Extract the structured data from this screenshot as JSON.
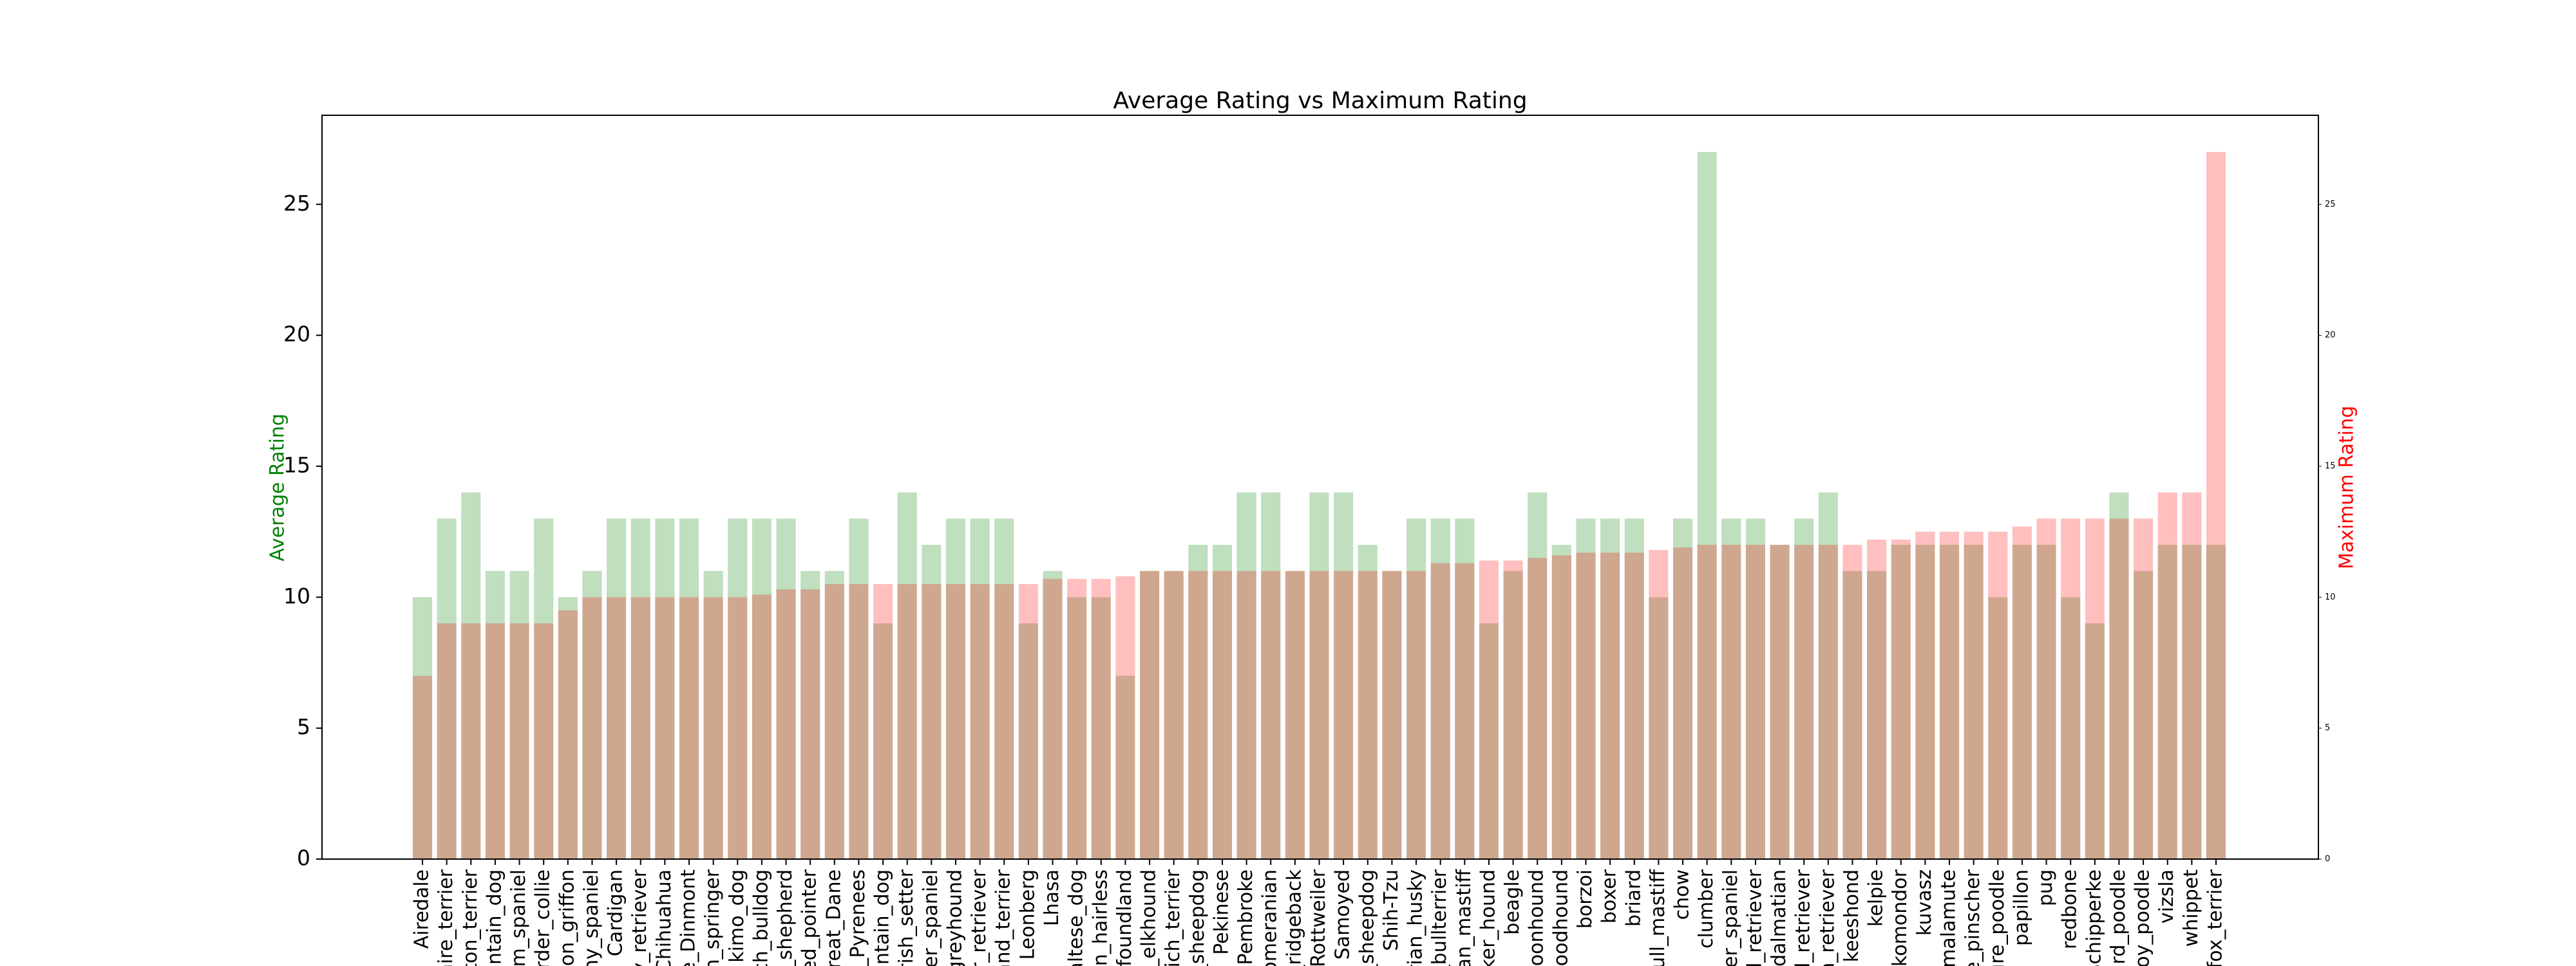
{
  "chart_data": {
    "type": "bar",
    "title": "Average Rating vs Maximum Rating",
    "ylabel": "Average Rating",
    "y2label": "Maximum Rating",
    "categories": [
      "Airedale",
      "hire_terrier",
      "ton_terrier",
      "untain_dog",
      "im_spaniel",
      "order_collie",
      "con_griffon",
      "ny_spaniel",
      "Cardigan",
      "y_retriever",
      "Chihuahua",
      "e_Dinmont",
      "h_springer",
      "kimo_dog",
      "ch_bulldog",
      "_shepherd",
      "ed_pointer",
      "reat_Dane",
      "t_Pyrenees",
      "untain_dog",
      "rish_setter",
      "ter_spaniel",
      "greyhound",
      "r_retriever",
      "and_terrier",
      "Leonberg",
      "Lhasa",
      "altese_dog",
      "an_hairless",
      "vfoundland",
      "_elkhound",
      "vich_terrier",
      "_sheepdog",
      "Pekinese",
      "Pembroke",
      "omeranian",
      "_ridgeback",
      "Rottweiler",
      "Samoyed",
      "_sheepdog",
      "Shih-Tzu",
      "rian_husky",
      "_bullterrier",
      "tan_mastiff",
      "ker_hound",
      "beagle",
      "coonhound",
      "loodhound",
      "borzoi",
      "boxer",
      "briard",
      "bull_mastiff",
      "chow",
      "clumber",
      "ker_spaniel",
      "d_retriever",
      "dalmatian",
      "d_retriever",
      "n_retriever",
      "keeshond",
      "kelpie",
      "komondor",
      "kuvasz",
      "malamute",
      "e_pinscher",
      "ure_poodle",
      "papillon",
      "pug",
      "redbone",
      "schipperke",
      "ard_poodle",
      "toy_poodle",
      "vizsla",
      "whippet",
      "_fox_terrier"
    ],
    "series": [
      {
        "name": "Average Rating",
        "color": "green",
        "opacity": 0.25,
        "values": [
          10,
          13,
          14,
          11,
          11,
          13,
          10,
          11,
          13,
          13,
          13,
          13,
          11,
          13,
          13,
          13,
          11,
          11,
          13,
          9,
          14,
          12,
          13,
          13,
          13,
          9,
          11,
          10,
          10,
          7,
          11,
          11,
          12,
          12,
          14,
          14,
          11,
          14,
          14,
          12,
          11,
          13,
          13,
          13,
          9,
          11,
          14,
          12,
          13,
          13,
          13,
          10,
          13,
          27,
          13,
          13,
          12,
          13,
          14,
          11,
          11,
          12,
          12,
          12,
          12,
          10,
          12,
          12,
          10,
          9,
          14,
          11,
          12,
          12,
          12
        ]
      },
      {
        "name": "Maximum Rating",
        "color": "red",
        "opacity": 0.25,
        "axis": "y2",
        "values": [
          7,
          9,
          9,
          9,
          9,
          9,
          9.5,
          10,
          10,
          10,
          10,
          10,
          10,
          10,
          10.1,
          10.3,
          10.3,
          10.5,
          10.5,
          10.5,
          10.5,
          10.5,
          10.5,
          10.5,
          10.5,
          10.5,
          10.7,
          10.7,
          10.7,
          10.8,
          11,
          11,
          11,
          11,
          11,
          11,
          11,
          11,
          11,
          11,
          11,
          11,
          11.3,
          11.3,
          11.4,
          11.4,
          11.5,
          11.6,
          11.7,
          11.7,
          11.7,
          11.8,
          11.9,
          12,
          12,
          12,
          12,
          12,
          12,
          12,
          12.2,
          12.2,
          12.5,
          12.5,
          12.5,
          12.5,
          12.7,
          13,
          13,
          13,
          13,
          13,
          14,
          14,
          27
        ]
      }
    ],
    "ylim": [
      0,
      28.4
    ],
    "yticks": [
      0,
      5,
      10,
      15,
      20,
      25
    ],
    "y2lim": [
      0,
      28.4
    ],
    "y2ticks": [
      0,
      5,
      10,
      15,
      20,
      25
    ]
  }
}
